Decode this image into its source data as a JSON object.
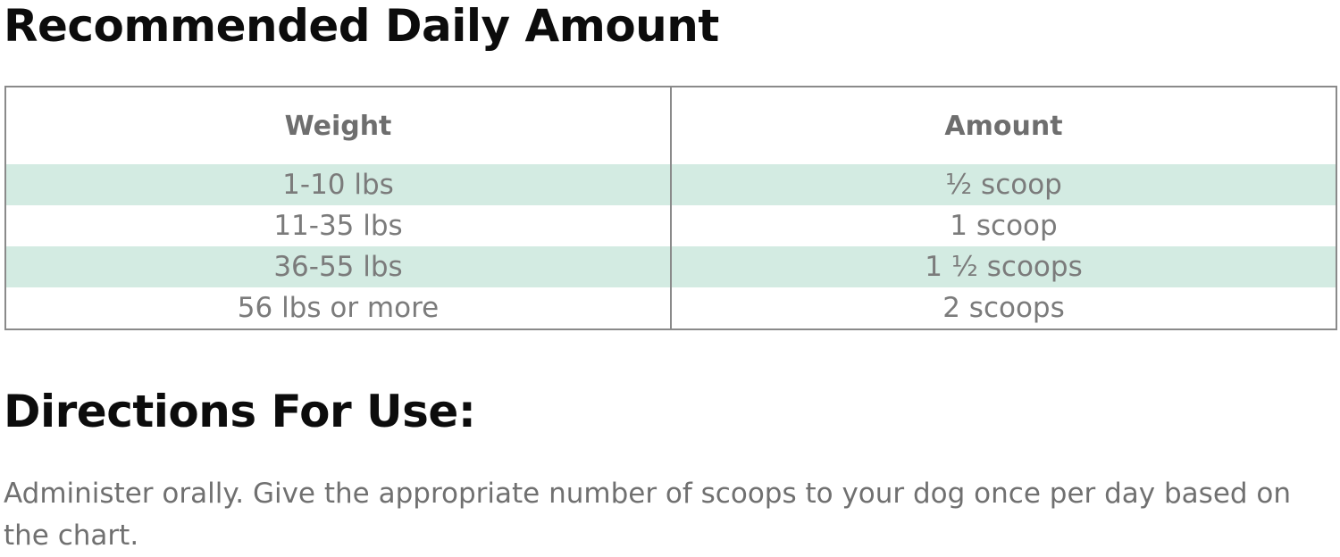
{
  "section1": {
    "title": "Recommended Daily Amount"
  },
  "table": {
    "headers": [
      "Weight",
      "Amount"
    ],
    "rows": [
      [
        "1-10 lbs",
        "½ scoop"
      ],
      [
        "11-35 lbs",
        "1 scoop"
      ],
      [
        "36-55 lbs",
        "1 ½ scoops"
      ],
      [
        "56 lbs or more",
        "2 scoops"
      ]
    ],
    "stripe_color": "#d3ebe2"
  },
  "section2": {
    "title": "Directions For Use:",
    "body": "Administer orally. Give the appropriate number of scoops to your dog once per day based on the chart."
  }
}
